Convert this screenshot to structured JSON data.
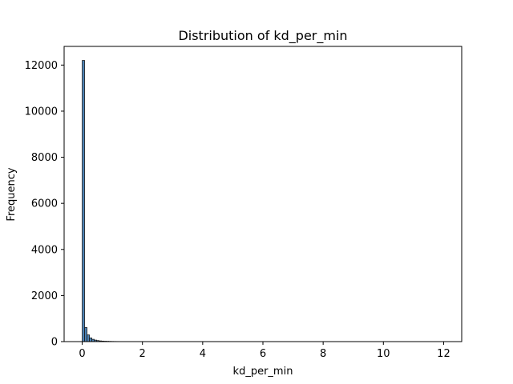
{
  "chart_data": {
    "type": "bar",
    "title": "Distribution of kd_per_min",
    "xlabel": "kd_per_min",
    "ylabel": "Frequency",
    "xlim": [
      -0.6,
      12.6
    ],
    "ylim": [
      0,
      12810
    ],
    "grid": false,
    "bar_color": "#4c82b4",
    "bar_edge_color": "#1a1a1a",
    "xticks": [
      0,
      2,
      4,
      6,
      8,
      10,
      12
    ],
    "xtick_labels": [
      "0",
      "2",
      "4",
      "6",
      "8",
      "10",
      "12"
    ],
    "yticks": [
      0,
      2000,
      4000,
      6000,
      8000,
      10000,
      12000
    ],
    "ytick_labels": [
      "0",
      "2000",
      "4000",
      "6000",
      "8000",
      "10000",
      "12000"
    ],
    "bins": [
      {
        "x0": 0.0,
        "x1": 0.08,
        "count": 12200
      },
      {
        "x0": 0.08,
        "x1": 0.16,
        "count": 610
      },
      {
        "x0": 0.16,
        "x1": 0.24,
        "count": 290
      },
      {
        "x0": 0.24,
        "x1": 0.32,
        "count": 160
      },
      {
        "x0": 0.32,
        "x1": 0.4,
        "count": 100
      },
      {
        "x0": 0.4,
        "x1": 0.48,
        "count": 65
      },
      {
        "x0": 0.48,
        "x1": 0.56,
        "count": 45
      },
      {
        "x0": 0.56,
        "x1": 0.64,
        "count": 30
      },
      {
        "x0": 0.64,
        "x1": 0.72,
        "count": 22
      },
      {
        "x0": 0.72,
        "x1": 0.8,
        "count": 17
      },
      {
        "x0": 0.8,
        "x1": 0.88,
        "count": 13
      },
      {
        "x0": 0.88,
        "x1": 0.96,
        "count": 10
      },
      {
        "x0": 0.96,
        "x1": 1.04,
        "count": 7
      },
      {
        "x0": 1.04,
        "x1": 1.12,
        "count": 5
      },
      {
        "x0": 1.12,
        "x1": 1.2,
        "count": 4
      },
      {
        "x0": 1.2,
        "x1": 1.28,
        "count": 3
      },
      {
        "x0": 1.28,
        "x1": 1.36,
        "count": 2
      }
    ]
  }
}
